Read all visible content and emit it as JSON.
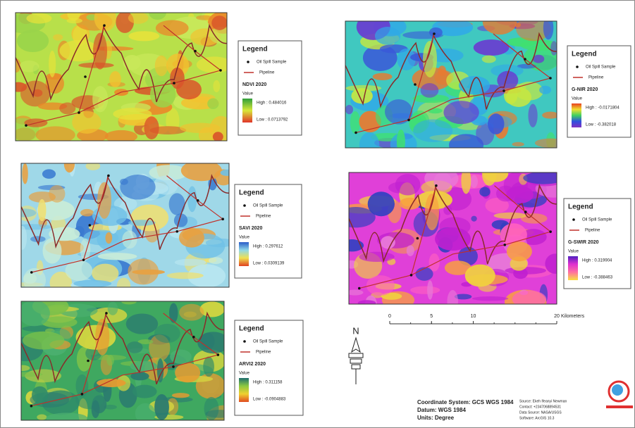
{
  "legend_title": "Legend",
  "legend_sample": "Oil Spill Sample",
  "legend_pipeline": "Pipeline",
  "legend_value": "Value",
  "maps": [
    {
      "title": "NDVI 2020",
      "high": "High : 0.484016",
      "low": "Low : 0.0713792",
      "base": "#b8e04a",
      "raster_colors": [
        "#e6e23a",
        "#f2c230",
        "#e98a2a",
        "#d9552a",
        "#9ad44a",
        "#c8e85a"
      ],
      "ramp": [
        "#2e9e3a",
        "#d8e83a",
        "#e0342a"
      ]
    },
    {
      "title": "SAVI 2020",
      "high": "High : 0.297612",
      "low": "Low : 0.0309139",
      "base": "#9fd8e8",
      "raster_colors": [
        "#6fc0e6",
        "#c9ecd8",
        "#f0e070",
        "#e8a040",
        "#3a7ad0",
        "#b8e6f0"
      ],
      "ramp": [
        "#2a5cc8",
        "#8fd8e8",
        "#f0e050",
        "#e04020"
      ]
    },
    {
      "title": "ARVI2 2020",
      "high": "High : 0.311158",
      "low": "Low : -0.0904883",
      "base": "#3fa860",
      "raster_colors": [
        "#2e8a6a",
        "#7cc04a",
        "#d6d640",
        "#e89a30",
        "#4cb070",
        "#2a7a70"
      ],
      "ramp": [
        "#1e6e6e",
        "#8cc840",
        "#f0d030",
        "#e04a20"
      ]
    },
    {
      "title": "G-NIR 2020",
      "high": "High : -0.0171804",
      "low": "Low : -0.382018",
      "base": "#40c8c0",
      "raster_colors": [
        "#3a58d8",
        "#6a3ad0",
        "#40e070",
        "#c8e840",
        "#e87a30",
        "#30a8e8"
      ],
      "ramp": [
        "#e84020",
        "#f0e030",
        "#40d060",
        "#3050e0",
        "#8030c0"
      ]
    },
    {
      "title": "G-SWIR 2020",
      "high": "High : 0.319904",
      "low": "Low : -0.388463",
      "base": "#e040d8",
      "raster_colors": [
        "#f0d040",
        "#e87ad8",
        "#c020d0",
        "#f8a040",
        "#3040c0",
        "#ff60c0"
      ],
      "ramp": [
        "#5020c0",
        "#e030d0",
        "#ff70a0",
        "#f8e040"
      ]
    }
  ],
  "scale_bar": {
    "ticks": [
      0,
      5,
      10,
      20
    ],
    "unit": "Kilometers"
  },
  "north": "N",
  "coordinates": [
    "Coordinate System: GCS WGS 1984",
    "Datum: WGS 1984",
    "Units: Degree"
  ],
  "source": [
    "Source: Ekeh Ifeanyi Newman",
    "Contact: +2347068894531",
    "Data Source: NASA/USGS",
    "Software: ArcGIS 10.3"
  ]
}
